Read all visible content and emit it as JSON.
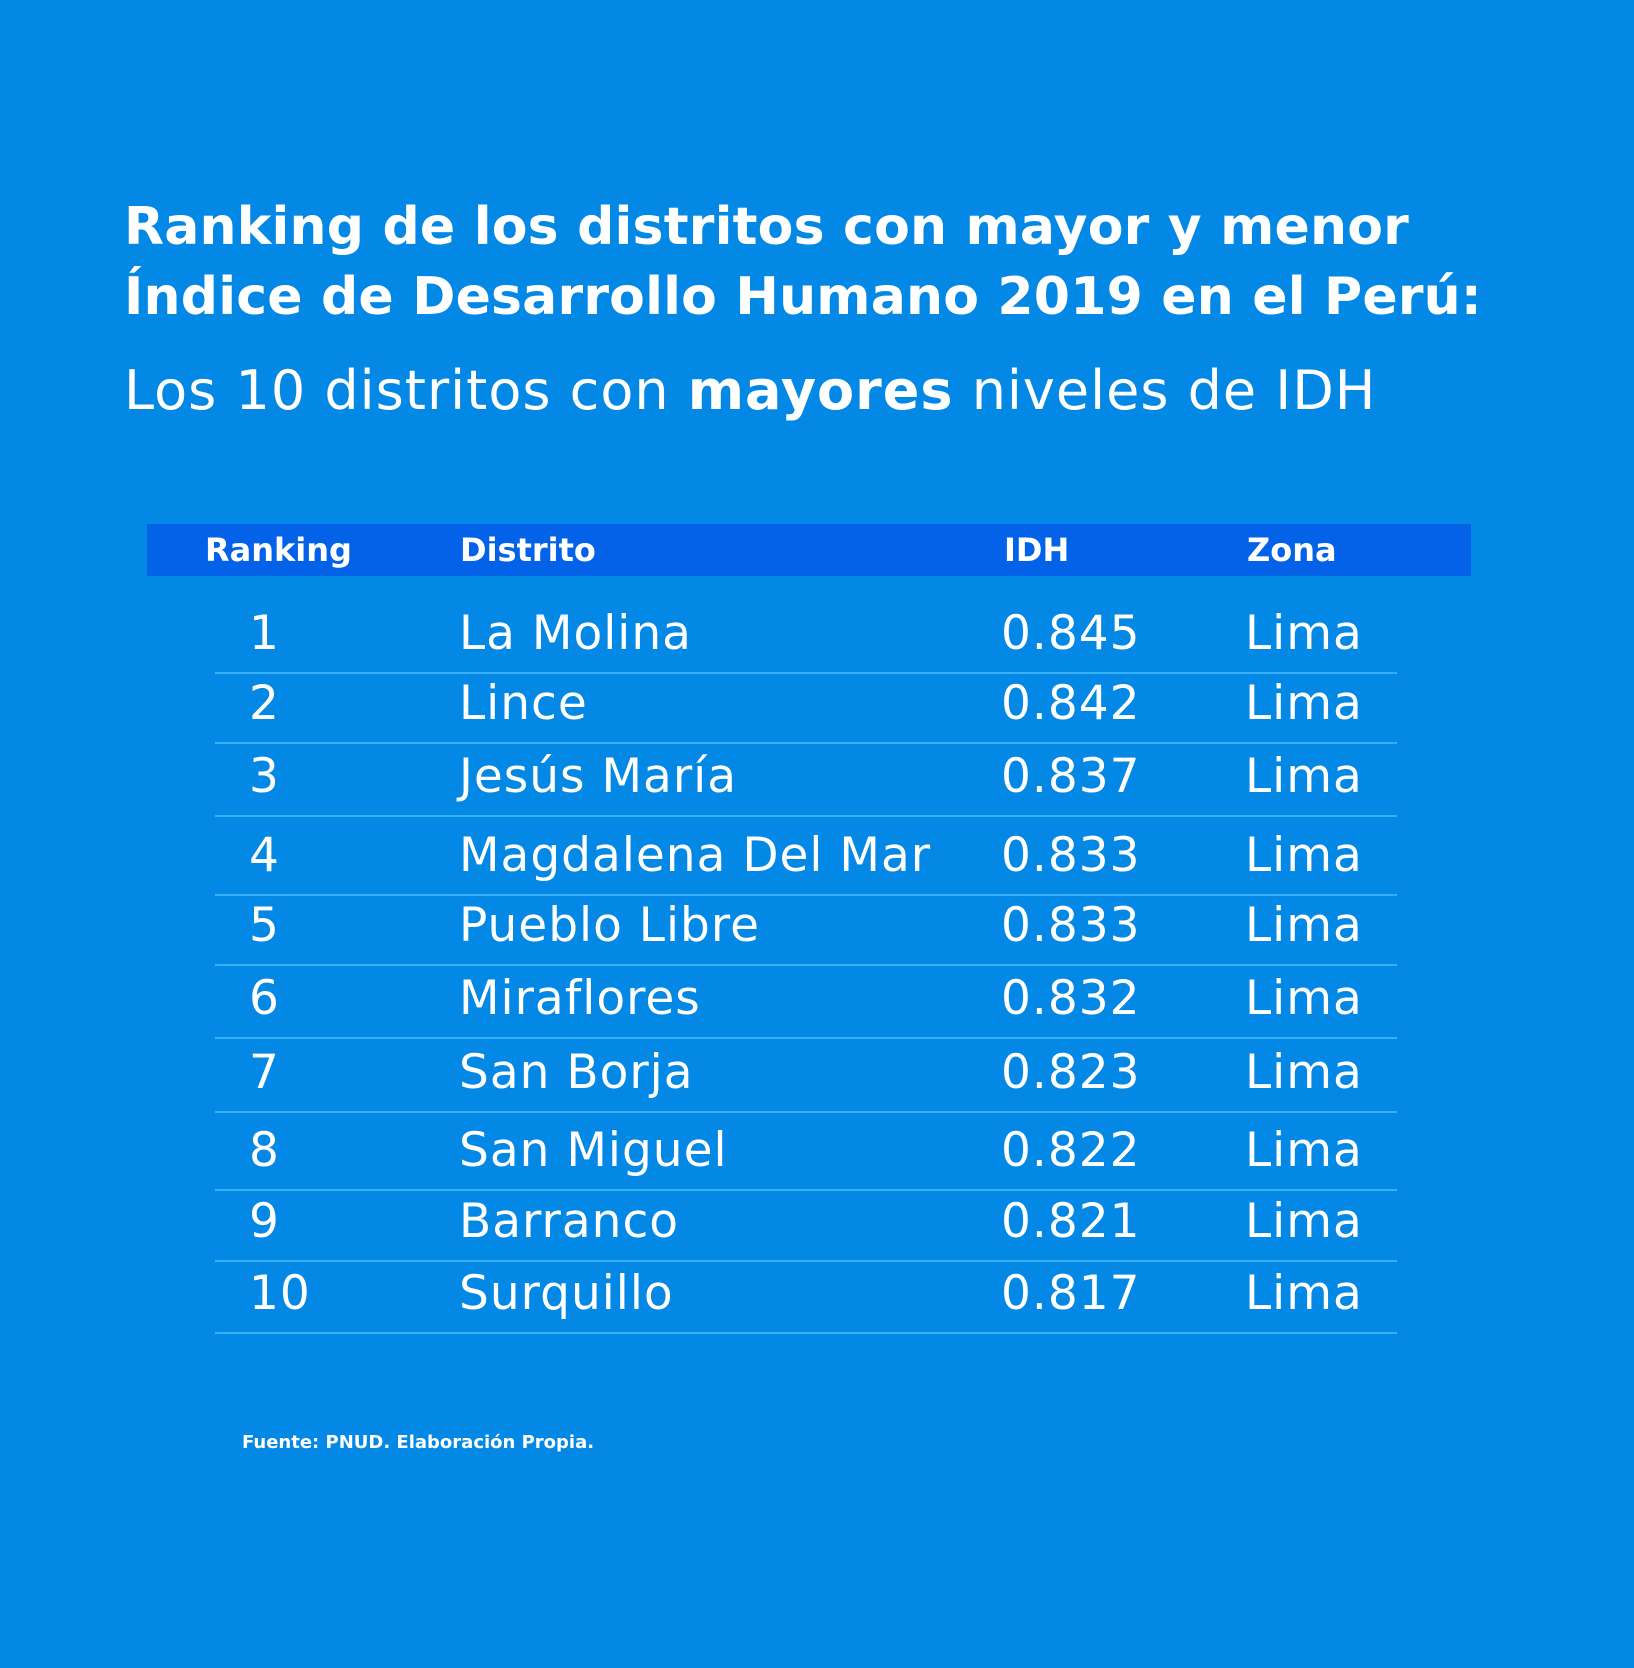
{
  "title": {
    "line1": "Ranking de los distritos con mayor y menor",
    "line2": "Índice de Desarrollo Humano  2019 en el Perú:"
  },
  "subtitle": {
    "before": "Los 10 distritos con ",
    "bold": "mayores",
    "after": " niveles de IDH"
  },
  "source": "Fuente: PNUD. Elaboración Propia.",
  "colors": {
    "background": "#0388e6",
    "header_band": "#0362e8",
    "row_line": "#3ab0f7",
    "text": "#ffffff"
  },
  "chart_data": {
    "type": "table",
    "title": "Ranking de los distritos con mayor y menor Índice de Desarrollo Humano  2019 en el Perú:",
    "subtitle": "Los 10 distritos con mayores niveles de IDH",
    "columns": [
      "Ranking",
      "Distrito",
      "IDH",
      "Zona"
    ],
    "rows": [
      {
        "ranking": "1",
        "distrito": "La Molina",
        "idh": "0.845",
        "zona": "Lima"
      },
      {
        "ranking": "2",
        "distrito": "Lince",
        "idh": "0.842",
        "zona": "Lima"
      },
      {
        "ranking": "3",
        "distrito": "Jesús María",
        "idh": "0.837",
        "zona": "Lima"
      },
      {
        "ranking": "4",
        "distrito": "Magdalena Del Mar",
        "idh": "0.833",
        "zona": "Lima"
      },
      {
        "ranking": "5",
        "distrito": "Pueblo Libre",
        "idh": "0.833",
        "zona": "Lima"
      },
      {
        "ranking": "6",
        "distrito": "Miraflores",
        "idh": "0.832",
        "zona": "Lima"
      },
      {
        "ranking": "7",
        "distrito": "San Borja",
        "idh": "0.823",
        "zona": "Lima"
      },
      {
        "ranking": "8",
        "distrito": "San Miguel",
        "idh": "0.822",
        "zona": "Lima"
      },
      {
        "ranking": "9",
        "distrito": "Barranco",
        "idh": "0.821",
        "zona": "Lima"
      },
      {
        "ranking": "10",
        "distrito": "Surquillo",
        "idh": "0.817",
        "zona": "Lima"
      }
    ]
  }
}
